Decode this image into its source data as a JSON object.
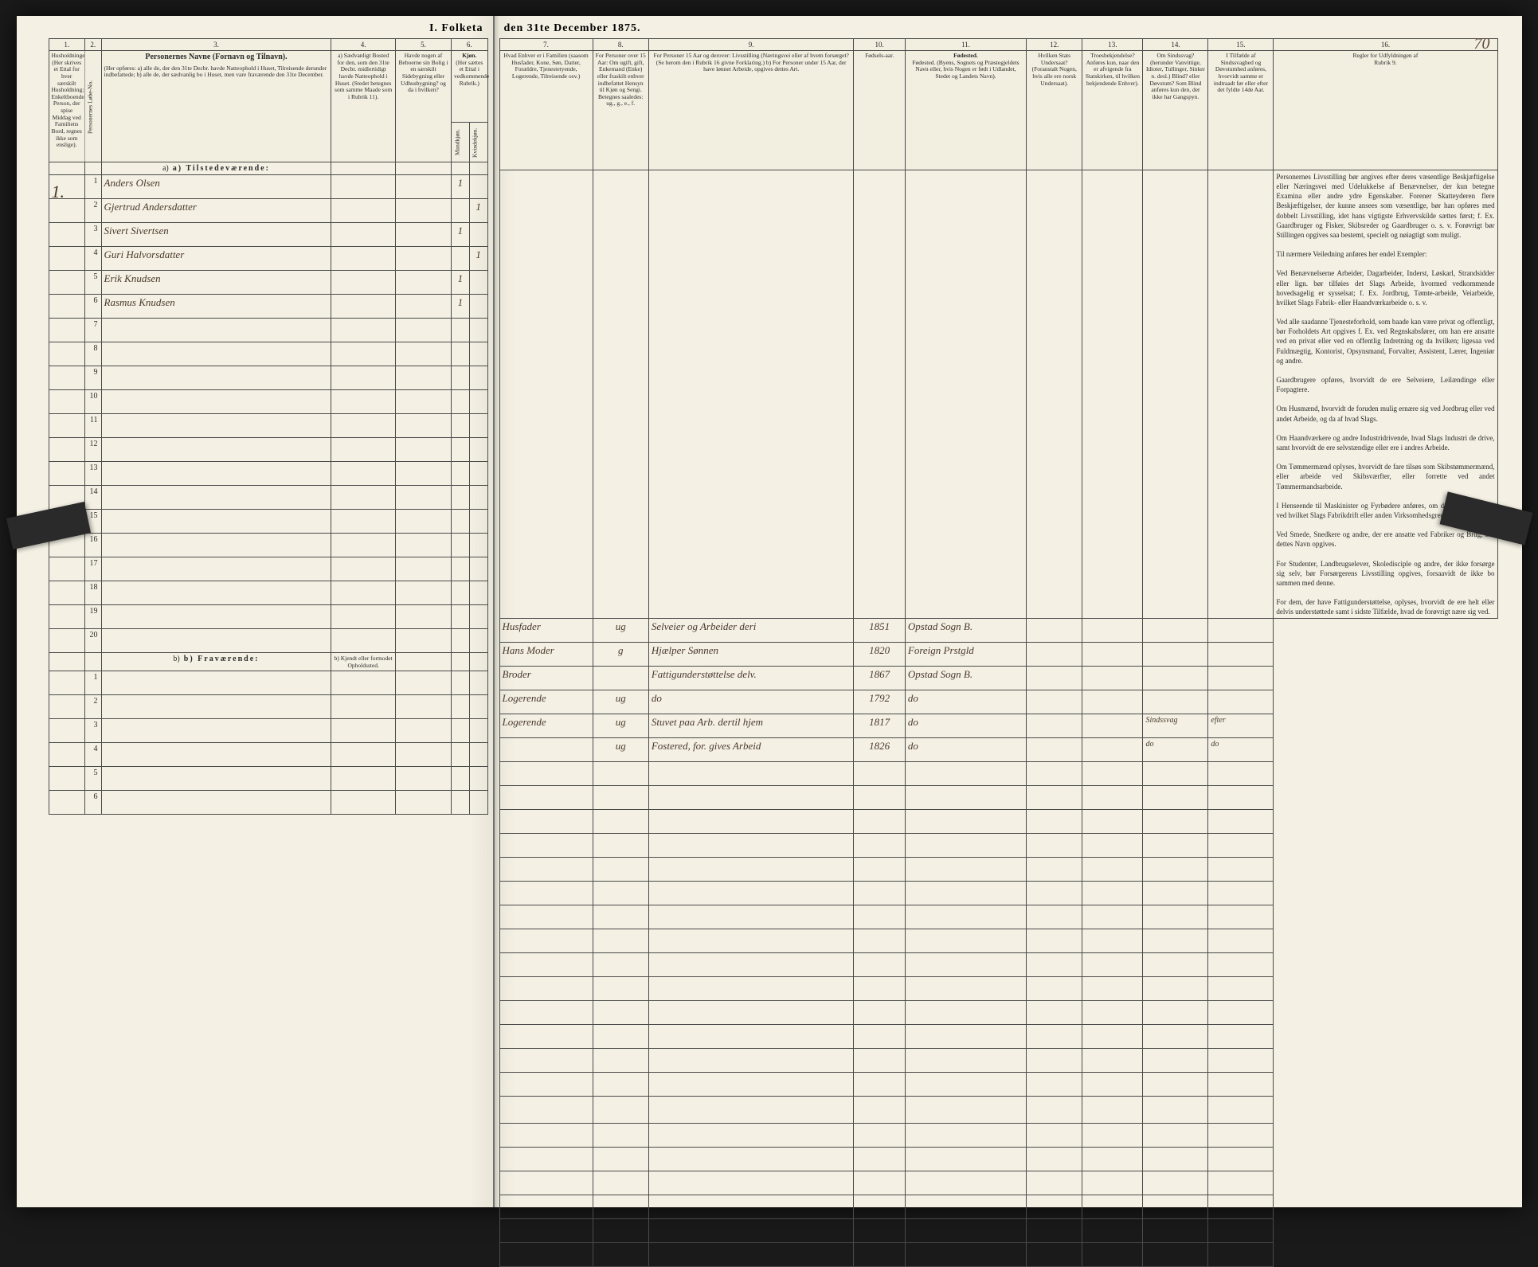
{
  "document": {
    "title_left": "I. Folketa",
    "title_right": "den 31te December 1875.",
    "page_number_handwritten": "70",
    "big_row_number": "1.",
    "columns": {
      "c1": "1.",
      "c2": "2.",
      "c3": "3.",
      "c4": "4.",
      "c5": "5.",
      "c6": "6.",
      "c7": "7.",
      "c8": "8.",
      "c9": "9.",
      "c10": "10.",
      "c11": "11.",
      "c12": "12.",
      "c13": "13.",
      "c14": "14.",
      "c15": "15.",
      "c16": "16."
    },
    "headers": {
      "h1": "Husholdninger.\n(Her skrives et Ettal for hver særskilt Husholdning; Enkeltboende Person, der spise Middag ved Familiens Bord, regnes ikke som enslige).",
      "h2": "Personernes Løbe-No.",
      "h3_title": "Personernes Navne (Fornavn og Tilnavn).",
      "h3_sub": "(Her opføres:\na) alle de, der den 31te Decbr. havde Natteophold i Huset, Tilreisende derunder indbefattede;\nb) alle de, der sædvanlig bo i Huset, men vare fraværende den 31te December.",
      "h4": "a) Sædvanligt Bosted for den, som den 31te Decbr. midlertidigt havde Natteophold i Huset. (Stedet betegnes som samme Maade som i Rubrik 11).",
      "h5": "Havde nogen af Beboerne sin Bolig i en særskilt Sidebygning eller Udhusbygning? og da i hvilken?",
      "h6_title": "Kjøn.",
      "h6_sub": "(Her sættes et Ettal i vedkommende Rubrik.)",
      "h6a": "Mandkjøn.",
      "h6b": "Kvindekjøn.",
      "h7": "Hvad Enhver er i Familien\n(saasom Husfader, Kone, Søn, Datter, Forældre, Tjenestetyende, Logerende, Tilreisende osv.)",
      "h8": "For Personer over 15 Aar: Om ugift, gift, Enkemand (Enke) eller fraskilt enhver indbefattet Hensyn til Kjøn og Sengi.\nBetegnes saaledes:\nug., g., e., f.",
      "h9": "For Personer 15 Aar og derover: Livsstilling (Næringsvei eller af hvem forsørget? (Se herom den i Rubrik 16 givne Forklaring.)\nb) For Personer under 15 Aar, der have lønnet Arbeide, opgives dettes Art.",
      "h10": "Fødsels-aar.",
      "h11": "Fødested.\n(Byens, Sognets og Præstegjeldets Navn eller, hvis Nogen er født i Udlandet, Stedet og Landets Navn).",
      "h12": "Hvilken Stats Undersaat?\n(Foranstalt Nogen, hvis alle ere norsk Undersaat).",
      "h13": "Troesbekjendelse?\nAnføres kun, naar den er afvigende fra Statskirken, til hvilken bekjendende Enhver).",
      "h14": "Om Sindssvag?\n(herunder Vanvittige, Idioter, Tullinger, Sinker n. desl.) Blind? eller Døvstum?\nSom Blind anføres kun den, der ikke har Gangspyn.",
      "h15": "I Tilfælde af Sindssvaghed og Døvstumhed anføres, hvorvidt samme er indtraadt før eller efter det fyldte 14de Aar.",
      "h16_title": "Regler for Udfyldningen af",
      "h16_sub": "Rubrik 9."
    },
    "sections": {
      "a_label": "a) Tilstedeværende:",
      "b_label": "b) Fraværende:",
      "b_col4": "b) Kjendt eller formodet Opholdssted."
    },
    "rows_a": [
      {
        "n": "1",
        "name": "Anders Olsen",
        "mk": "1",
        "kv": "",
        "fam": "Husfader",
        "civ": "ug",
        "occ": "Selveier og Arbeider deri",
        "year": "1851",
        "place": "Opstad Sogn B.",
        "c12": "",
        "c13": "",
        "c14": "",
        "c15": ""
      },
      {
        "n": "2",
        "name": "Gjertrud Andersdatter",
        "mk": "",
        "kv": "1",
        "fam": "Hans Moder",
        "civ": "g",
        "occ": "Hjælper Sønnen",
        "year": "1820",
        "place": "Foreign Prstgld",
        "c12": "",
        "c13": "",
        "c14": "",
        "c15": ""
      },
      {
        "n": "3",
        "name": "Sivert Sivertsen",
        "mk": "1",
        "kv": "",
        "fam": "Broder",
        "civ": "",
        "occ": "Fattigunderstøttelse delv.",
        "year": "1867",
        "place": "Opstad Sogn B.",
        "c12": "",
        "c13": "",
        "c14": "",
        "c15": ""
      },
      {
        "n": "4",
        "name": "Guri Halvorsdatter",
        "mk": "",
        "kv": "1",
        "fam": "Logerende",
        "civ": "ug",
        "occ": "do",
        "year": "1792",
        "place": "do",
        "c12": "",
        "c13": "",
        "c14": "",
        "c15": ""
      },
      {
        "n": "5",
        "name": "Erik Knudsen",
        "mk": "1",
        "kv": "",
        "fam": "Logerende",
        "civ": "ug",
        "occ": "Stuvet paa Arb. dertil hjem",
        "year": "1817",
        "place": "do",
        "c12": "",
        "c13": "",
        "c14": "Sindssvag",
        "c15": "efter"
      },
      {
        "n": "6",
        "name": "Rasmus Knudsen",
        "mk": "1",
        "kv": "",
        "fam": "",
        "civ": "ug",
        "occ": "Fostered, for. gives Arbeid",
        "year": "1826",
        "place": "do",
        "c12": "",
        "c13": "",
        "c14": "do",
        "c15": "do"
      },
      {
        "n": "7",
        "name": "",
        "mk": "",
        "kv": "",
        "fam": "",
        "civ": "",
        "occ": "",
        "year": "",
        "place": "",
        "c12": "",
        "c13": "",
        "c14": "",
        "c15": ""
      },
      {
        "n": "8",
        "name": "",
        "mk": "",
        "kv": "",
        "fam": "",
        "civ": "",
        "occ": "",
        "year": "",
        "place": "",
        "c12": "",
        "c13": "",
        "c14": "",
        "c15": ""
      },
      {
        "n": "9",
        "name": "",
        "mk": "",
        "kv": "",
        "fam": "",
        "civ": "",
        "occ": "",
        "year": "",
        "place": "",
        "c12": "",
        "c13": "",
        "c14": "",
        "c15": ""
      },
      {
        "n": "10",
        "name": "",
        "mk": "",
        "kv": "",
        "fam": "",
        "civ": "",
        "occ": "",
        "year": "",
        "place": "",
        "c12": "",
        "c13": "",
        "c14": "",
        "c15": ""
      },
      {
        "n": "11",
        "name": "",
        "mk": "",
        "kv": "",
        "fam": "",
        "civ": "",
        "occ": "",
        "year": "",
        "place": "",
        "c12": "",
        "c13": "",
        "c14": "",
        "c15": ""
      },
      {
        "n": "12",
        "name": "",
        "mk": "",
        "kv": "",
        "fam": "",
        "civ": "",
        "occ": "",
        "year": "",
        "place": "",
        "c12": "",
        "c13": "",
        "c14": "",
        "c15": ""
      },
      {
        "n": "13",
        "name": "",
        "mk": "",
        "kv": "",
        "fam": "",
        "civ": "",
        "occ": "",
        "year": "",
        "place": "",
        "c12": "",
        "c13": "",
        "c14": "",
        "c15": ""
      },
      {
        "n": "14",
        "name": "",
        "mk": "",
        "kv": "",
        "fam": "",
        "civ": "",
        "occ": "",
        "year": "",
        "place": "",
        "c12": "",
        "c13": "",
        "c14": "",
        "c15": ""
      },
      {
        "n": "15",
        "name": "",
        "mk": "",
        "kv": "",
        "fam": "",
        "civ": "",
        "occ": "",
        "year": "",
        "place": "",
        "c12": "",
        "c13": "",
        "c14": "",
        "c15": ""
      },
      {
        "n": "16",
        "name": "",
        "mk": "",
        "kv": "",
        "fam": "",
        "civ": "",
        "occ": "",
        "year": "",
        "place": "",
        "c12": "",
        "c13": "",
        "c14": "",
        "c15": ""
      },
      {
        "n": "17",
        "name": "",
        "mk": "",
        "kv": "",
        "fam": "",
        "civ": "",
        "occ": "",
        "year": "",
        "place": "",
        "c12": "",
        "c13": "",
        "c14": "",
        "c15": ""
      },
      {
        "n": "18",
        "name": "",
        "mk": "",
        "kv": "",
        "fam": "",
        "civ": "",
        "occ": "",
        "year": "",
        "place": "",
        "c12": "",
        "c13": "",
        "c14": "",
        "c15": ""
      },
      {
        "n": "19",
        "name": "",
        "mk": "",
        "kv": "",
        "fam": "",
        "civ": "",
        "occ": "",
        "year": "",
        "place": "",
        "c12": "",
        "c13": "",
        "c14": "",
        "c15": ""
      },
      {
        "n": "20",
        "name": "",
        "mk": "",
        "kv": "",
        "fam": "",
        "civ": "",
        "occ": "",
        "year": "",
        "place": "",
        "c12": "",
        "c13": "",
        "c14": "",
        "c15": ""
      }
    ],
    "rows_b": [
      "1",
      "2",
      "3",
      "4",
      "5",
      "6"
    ],
    "instructions_text": "Personernes Livsstilling bør angives efter deres væsentlige Beskjæftigelse eller Næringsvei med Udelukkelse af Benævnelser, der kun betegne Examina eller andre ydre Egenskaber. Forener Skatteyderen flere Beskjæftigelser, der kunne ansees som væsentlige, bør han opføres med dobbelt Livsstilling, idet hans vigtigste Erhvervskilde sættes først; f. Ex. Gaardbruger og Fisker, Skibsreder og Gaardbruger o. s. v. Forøvrigt bør Stillingen opgives saa bestemt, specielt og nøiagtigt som muligt.\n\nTil nærmere Veiledning anføres her endel Exempler:\n\nVed Benævnelserne Arbeider, Dagarbeider, Inderst, Løskarl, Strandsidder eller lign. bør tilføies det Slags Arbeide, hvormed vedkommende hovedsagelig er sysselsat; f. Ex. Jordbrug, Tømte-arbeide, Veiarbeide, hvilket Slags Fabrik- eller Haandværkarbeide o. s. v.\n\nVed alle saadanne Tjenesteforhold, som baade kan være privat og offentligt, bør Forholdets Art opgives f. Ex. ved Regnskabsfører, om han ere ansatte ved en privat eller ved en offentlig Indretning og da hvilken; ligesaa ved Fuldmægtig, Kontorist, Opsynsmand, Forvalter, Assistent, Lærer, Ingeniør og andre.\n\nGaardbrugere opføres, hvorvidt de ere Selveiere, Leilændinge eller Forpagtere.\n\nOm Husmænd, hvorvidt de foruden mulig ernære sig ved Jordbrug eller ved andet Arbeide, og da af hvad Slags.\n\nOm Haandværkere og andre Industridrivende, hvad Slags Industri de drive, samt hvorvidt de ere selvstændige eller ere i andres Arbeide.\n\nOm Tømmermænd oplyses, hvorvidt de fare tilsøs som Skibstømmermænd, eller arbeide ved Skibsværfter, eller forrette ved andet Tømmermandsarbeide.\n\nI Henseende til Maskinister og Fyrbødere anføres, om de fare tilsøs eller ved hvilket Slags Fabrikdrift eller anden Virksomhedsgren de ere ansatte.\n\nVed Smede, Snedkere og andre, der ere ansatte ved Fabriker og Brug, bør dettes Navn opgives.\n\nFor Studenter, Landbrugselever, Skoledisciple og andre, der ikke forsørge sig selv, bør Forsørgerens Livsstilling opgives, forsaavidt de ikke bo sammen med denne.\n\nFor dem, der have Fattigunderstøttelse, oplyses, hvorvidt de ere helt eller delvis understøttede samt i sidste Tilfælde, hvad de forøvrigt nære sig ved."
  },
  "colors": {
    "paper": "#f4f0e4",
    "ink": "#2a2a2a",
    "handwriting": "#4a3a2a",
    "border": "#4a4a4a",
    "background": "#1a1a1a"
  }
}
